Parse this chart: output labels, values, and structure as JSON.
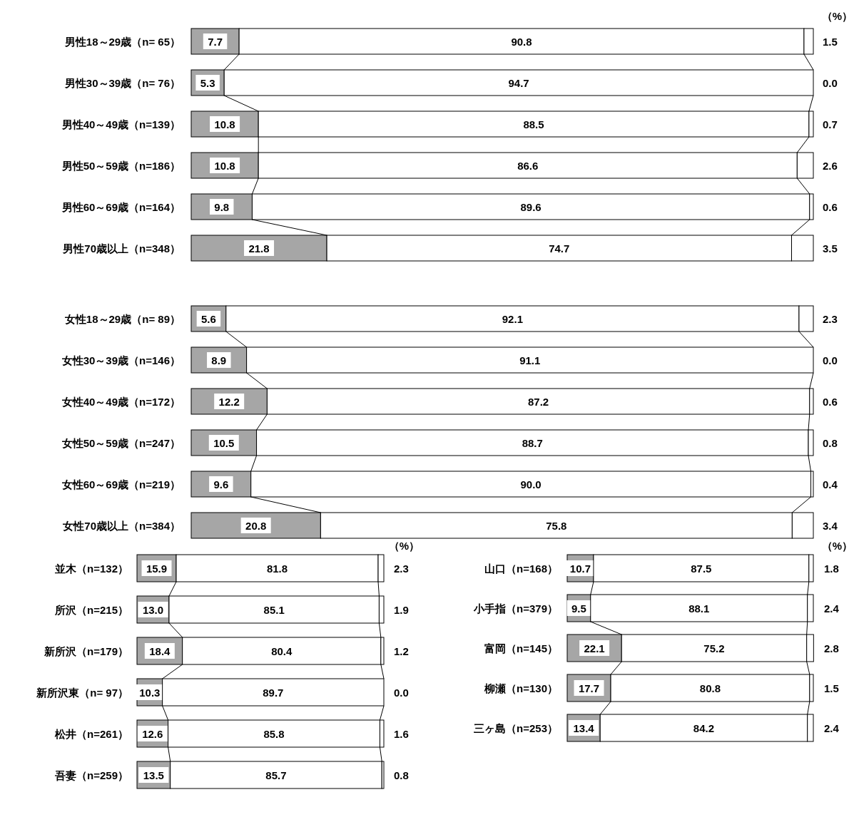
{
  "chart_data": [
    {
      "type": "bar",
      "orientation": "horizontal",
      "stacked": true,
      "xlim": [
        0,
        100
      ],
      "annotations": [
        "（%）"
      ],
      "categories": [
        "男性18～29歳（n= 65）",
        "男性30～39歳（n= 76）",
        "男性40～49歳（n=139）",
        "男性50～59歳（n=186）",
        "男性60～69歳（n=164）",
        "男性70歳以上（n=348）"
      ],
      "series": [
        {
          "color": "#a6a6a6",
          "values": [
            7.7,
            5.3,
            10.8,
            10.8,
            9.8,
            21.8
          ],
          "value_labels": [
            "7.7",
            "5.3",
            "10.8",
            "10.8",
            "9.8",
            "21.8"
          ]
        },
        {
          "color": "#ffffff",
          "values": [
            90.8,
            94.7,
            88.5,
            86.6,
            89.6,
            74.7
          ],
          "value_labels": [
            "90.8",
            "94.7",
            "88.5",
            "86.6",
            "89.6",
            "74.7"
          ]
        },
        {
          "color": "#ffffff",
          "values": [
            1.5,
            0,
            0.7,
            2.6,
            0.6,
            3.5
          ],
          "value_labels": [
            "1.5",
            "0.0",
            "0.7",
            "2.6",
            "0.6",
            "3.5"
          ]
        }
      ]
    },
    {
      "type": "bar",
      "orientation": "horizontal",
      "stacked": true,
      "xlim": [
        0,
        100
      ],
      "categories": [
        "女性18～29歳（n= 89）",
        "女性30～39歳（n=146）",
        "女性40～49歳（n=172）",
        "女性50～59歳（n=247）",
        "女性60～69歳（n=219）",
        "女性70歳以上（n=384）"
      ],
      "series": [
        {
          "color": "#a6a6a6",
          "values": [
            5.6,
            8.9,
            12.2,
            10.5,
            9.6,
            20.8
          ],
          "value_labels": [
            "5.6",
            "8.9",
            "12.2",
            "10.5",
            "9.6",
            "20.8"
          ]
        },
        {
          "color": "#ffffff",
          "values": [
            92.1,
            91.1,
            87.2,
            88.7,
            90,
            75.8
          ],
          "value_labels": [
            "92.1",
            "91.1",
            "87.2",
            "88.7",
            "90.0",
            "75.8"
          ]
        },
        {
          "color": "#ffffff",
          "values": [
            2.3,
            0,
            0.6,
            0.8,
            0.4,
            3.4
          ],
          "value_labels": [
            "2.3",
            "0.0",
            "0.6",
            "0.8",
            "0.4",
            "3.4"
          ]
        }
      ]
    },
    {
      "type": "bar",
      "orientation": "horizontal",
      "stacked": true,
      "xlim": [
        0,
        100
      ],
      "annotations": [
        "（%）"
      ],
      "categories": [
        "並木（n=132）",
        "所沢（n=215）",
        "新所沢（n=179）",
        "新所沢東（n= 97）",
        "松井（n=261）",
        "吾妻（n=259）"
      ],
      "series": [
        {
          "color": "#a6a6a6",
          "values": [
            15.9,
            13,
            18.4,
            10.3,
            12.6,
            13.5
          ],
          "value_labels": [
            "15.9",
            "13.0",
            "18.4",
            "10.3",
            "12.6",
            "13.5"
          ]
        },
        {
          "color": "#ffffff",
          "values": [
            81.8,
            85.1,
            80.4,
            89.7,
            85.8,
            85.7
          ],
          "value_labels": [
            "81.8",
            "85.1",
            "80.4",
            "89.7",
            "85.8",
            "85.7"
          ]
        },
        {
          "color": "#ffffff",
          "values": [
            2.3,
            1.9,
            1.2,
            0,
            1.6,
            0.8
          ],
          "value_labels": [
            "2.3",
            "1.9",
            "1.2",
            "0.0",
            "1.6",
            "0.8"
          ]
        }
      ]
    },
    {
      "type": "bar",
      "orientation": "horizontal",
      "stacked": true,
      "xlim": [
        0,
        100
      ],
      "annotations": [
        "（%）"
      ],
      "categories": [
        "山口（n=168）",
        "小手指（n=379）",
        "富岡（n=145）",
        "柳瀬（n=130）",
        "三ヶ島（n=253）"
      ],
      "series": [
        {
          "color": "#a6a6a6",
          "values": [
            10.7,
            9.5,
            22.1,
            17.7,
            13.4
          ],
          "value_labels": [
            "10.7",
            "9.5",
            "22.1",
            "17.7",
            "13.4"
          ]
        },
        {
          "color": "#ffffff",
          "values": [
            87.5,
            88.1,
            75.2,
            80.8,
            84.2
          ],
          "value_labels": [
            "87.5",
            "88.1",
            "75.2",
            "80.8",
            "84.2"
          ]
        },
        {
          "color": "#ffffff",
          "values": [
            1.8,
            2.4,
            2.8,
            1.5,
            2.4
          ],
          "value_labels": [
            "1.8",
            "2.4",
            "2.8",
            "1.5",
            "2.4"
          ]
        }
      ]
    }
  ]
}
